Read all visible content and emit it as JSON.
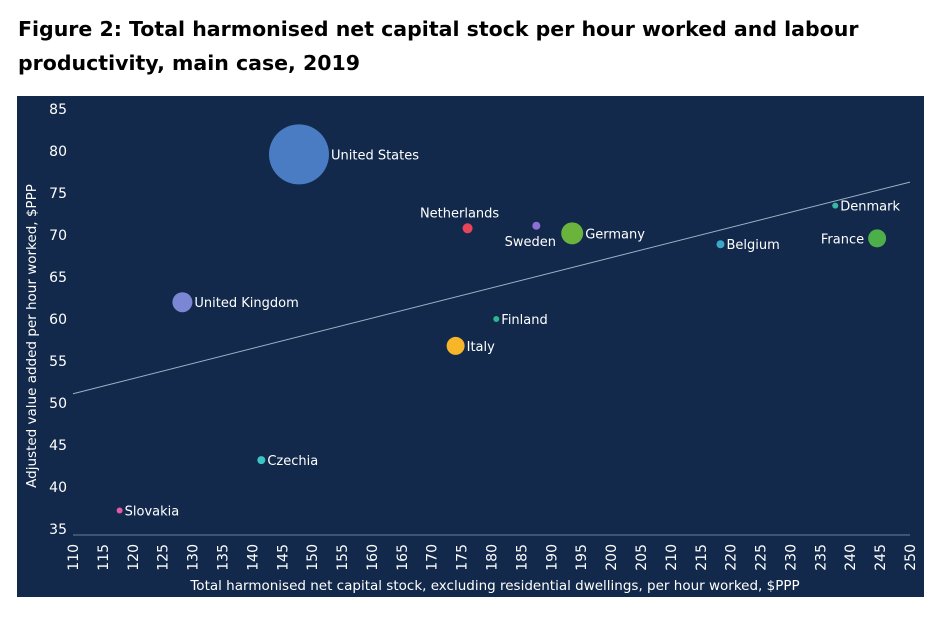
{
  "title": "Figure 2: Total harmonised net capital stock per hour worked and labour productivity, main case, 2019",
  "chart_data": {
    "type": "scatter",
    "title": "Figure 2: Total harmonised net capital stock per hour worked and labour productivity, main case, 2019",
    "xlabel": "Total harmonised net capital stock, excluding residential dwellings, per hour worked, $PPP",
    "ylabel": "Adjusted value added per hour worked, $PPP",
    "xlim": [
      110,
      250
    ],
    "ylim": [
      35,
      85
    ],
    "x_ticks": [
      110,
      115,
      120,
      125,
      130,
      135,
      140,
      145,
      150,
      155,
      160,
      165,
      170,
      175,
      180,
      185,
      190,
      195,
      200,
      205,
      210,
      215,
      220,
      225,
      230,
      235,
      240,
      245,
      250
    ],
    "y_ticks": [
      35,
      40,
      45,
      50,
      55,
      60,
      65,
      70,
      75,
      80,
      85
    ],
    "trendline": [
      [
        110,
        51.1
      ],
      [
        250,
        76.3
      ]
    ],
    "background": "#13294b",
    "points": [
      {
        "label": "United States",
        "x": 147.8,
        "y": 79.6,
        "size": 30,
        "color": "#4a7cc4",
        "label_pos": "right"
      },
      {
        "label": "Netherlands",
        "x": 176.0,
        "y": 70.8,
        "size": 5,
        "color": "#e8455b",
        "label_pos": "above"
      },
      {
        "label": "Sweden",
        "x": 187.5,
        "y": 71.1,
        "size": 4,
        "color": "#8e6fd4",
        "label_pos": "below-left"
      },
      {
        "label": "Germany",
        "x": 193.5,
        "y": 70.2,
        "size": 11,
        "color": "#6ab43e",
        "label_pos": "right"
      },
      {
        "label": "Denmark",
        "x": 237.5,
        "y": 73.5,
        "size": 3,
        "color": "#3ab7a4",
        "label_pos": "right"
      },
      {
        "label": "France",
        "x": 244.5,
        "y": 69.6,
        "size": 9,
        "color": "#4daf4a",
        "label_pos": "left"
      },
      {
        "label": "Belgium",
        "x": 218.3,
        "y": 68.9,
        "size": 4,
        "color": "#3aa9c8",
        "label_pos": "right"
      },
      {
        "label": "United Kingdom",
        "x": 128.3,
        "y": 62.0,
        "size": 10,
        "color": "#7b86d4",
        "label_pos": "right"
      },
      {
        "label": "Finland",
        "x": 180.8,
        "y": 60.0,
        "size": 3,
        "color": "#2fb48c",
        "label_pos": "right"
      },
      {
        "label": "Italy",
        "x": 174.0,
        "y": 56.8,
        "size": 9,
        "color": "#f7b529",
        "label_pos": "right"
      },
      {
        "label": "Czechia",
        "x": 141.5,
        "y": 43.2,
        "size": 4,
        "color": "#3ac5c5",
        "label_pos": "right"
      },
      {
        "label": "Slovakia",
        "x": 117.8,
        "y": 37.2,
        "size": 3,
        "color": "#e659a8",
        "label_pos": "right"
      }
    ]
  }
}
